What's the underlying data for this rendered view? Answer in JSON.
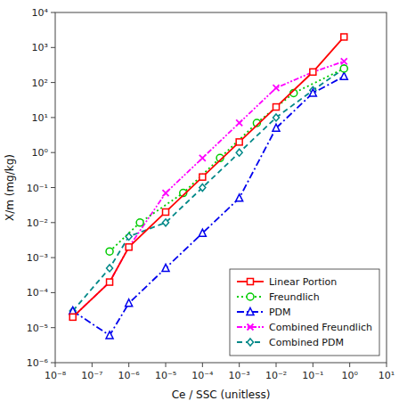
{
  "chart_data": {
    "type": "line",
    "x_label": "Ce / SSC (unitless)",
    "y_label": "X/m (mg/kg)",
    "log": true,
    "grid": false,
    "legend": "lower right",
    "xlim": [
      1e-08,
      10.0
    ],
    "ylim": [
      1e-06,
      10000.0
    ],
    "xticks": [
      {
        "value": 1e-08,
        "label": "10⁻⁸"
      },
      {
        "value": 1e-07,
        "label": "10⁻⁷"
      },
      {
        "value": 1e-06,
        "label": "10⁻⁶"
      },
      {
        "value": 1e-05,
        "label": "10⁻⁵"
      },
      {
        "value": 0.0001,
        "label": "10⁻⁴"
      },
      {
        "value": 0.001,
        "label": "10⁻³"
      },
      {
        "value": 0.01,
        "label": "10⁻²"
      },
      {
        "value": 0.1,
        "label": "10⁻¹"
      },
      {
        "value": 1,
        "label": "10⁰"
      },
      {
        "value": 10,
        "label": "10¹"
      }
    ],
    "yticks": [
      {
        "value": 1e-06,
        "label": "10⁻⁶"
      },
      {
        "value": 1e-05,
        "label": "10⁻⁵"
      },
      {
        "value": 0.0001,
        "label": "10⁻⁴"
      },
      {
        "value": 0.001,
        "label": "10⁻³"
      },
      {
        "value": 0.01,
        "label": "10⁻²"
      },
      {
        "value": 0.1,
        "label": "10⁻¹"
      },
      {
        "value": 1,
        "label": "10⁰"
      },
      {
        "value": 10,
        "label": "10¹"
      },
      {
        "value": 100,
        "label": "10²"
      },
      {
        "value": 1000,
        "label": "10³"
      },
      {
        "value": 10000,
        "label": "10⁴"
      }
    ],
    "series": [
      {
        "name": "Linear Portion",
        "color": "#ff0000",
        "marker": "square",
        "line_style": "solid",
        "x": [
          3e-08,
          3e-07,
          1e-06,
          1e-05,
          0.0001,
          0.001,
          0.01,
          0.1,
          0.7
        ],
        "values": [
          2e-05,
          0.0002,
          0.002,
          0.02,
          0.2,
          2.0,
          20.0,
          200.0,
          2000.0
        ]
      },
      {
        "name": "Freundlich",
        "color": "#00cc00",
        "marker": "circle",
        "line_style": "dotted",
        "x": [
          3e-07,
          2e-06,
          3e-05,
          0.0003,
          0.003,
          0.03,
          0.7
        ],
        "values": [
          0.0015,
          0.01,
          0.07,
          0.7,
          7.0,
          50.0,
          250.0
        ]
      },
      {
        "name": "PDM",
        "color": "#0000ee",
        "marker": "triangle",
        "line_style": "dashdot",
        "x": [
          3e-08,
          3e-07,
          1e-06,
          1e-05,
          0.0001,
          0.001,
          0.01,
          0.1,
          0.7
        ],
        "values": [
          3e-05,
          6e-06,
          5e-05,
          0.0005,
          0.005,
          0.05,
          5.0,
          50.0,
          150.0
        ]
      },
      {
        "name": "Combined Freundlich",
        "color": "#ff00ff",
        "marker": "x",
        "line_style": "dashdotdot",
        "x": [
          3e-08,
          3e-07,
          1e-06,
          1e-05,
          0.0001,
          0.001,
          0.01,
          0.1,
          0.7
        ],
        "values": [
          2e-05,
          0.0002,
          0.002,
          0.07,
          0.7,
          7.0,
          70.0,
          200.0,
          400.0
        ]
      },
      {
        "name": "Combined PDM",
        "color": "#008888",
        "marker": "diamond",
        "line_style": "dashed",
        "x": [
          3e-08,
          3e-07,
          1e-06,
          1e-05,
          0.0001,
          0.001,
          0.01,
          0.1,
          0.7
        ],
        "values": [
          3e-05,
          0.0005,
          0.004,
          0.01,
          0.1,
          1.0,
          10.0,
          60.0,
          250.0
        ]
      }
    ]
  }
}
